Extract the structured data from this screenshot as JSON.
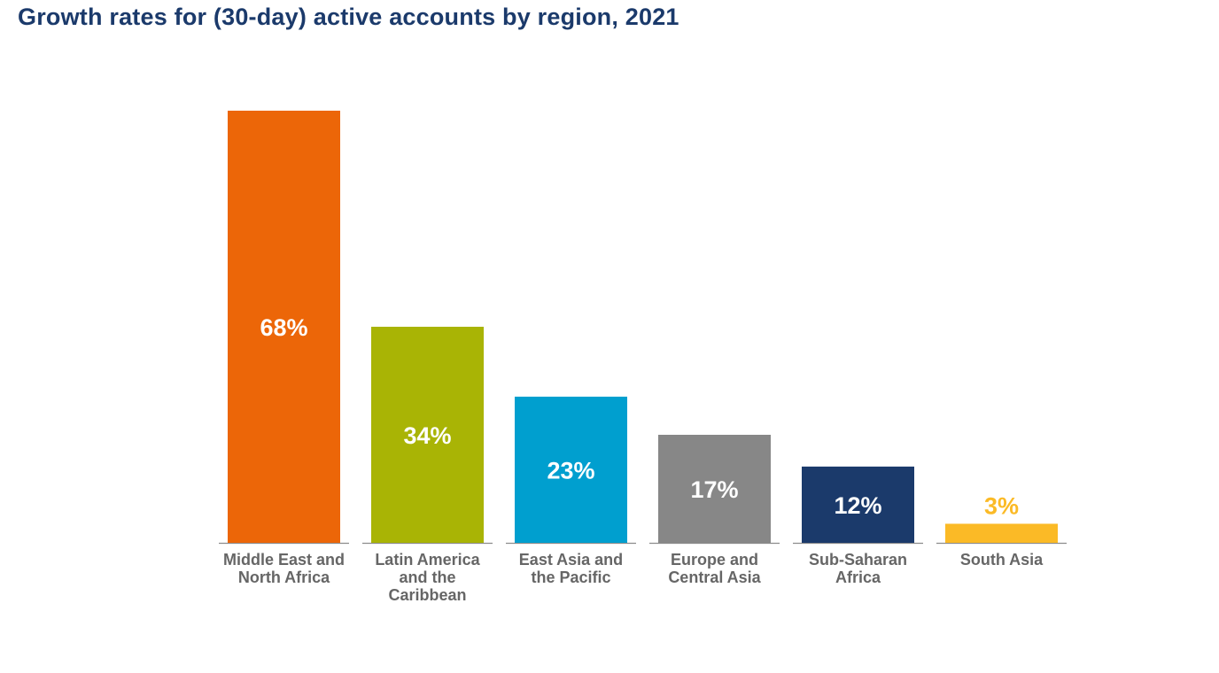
{
  "chart_data": {
    "type": "bar",
    "title": "Growth rates for (30-day) active accounts by region, 2021",
    "xlabel": "",
    "ylabel": "",
    "ylim": [
      0,
      68
    ],
    "grid": false,
    "legend": "none",
    "categories": [
      [
        "Middle East and",
        "North Africa"
      ],
      [
        "Latin America",
        "and the",
        "Caribbean"
      ],
      [
        "East Asia and",
        "the Pacific"
      ],
      [
        "Europe and",
        "Central Asia"
      ],
      [
        "Sub-Saharan",
        "Africa"
      ],
      [
        "South Asia"
      ]
    ],
    "values": [
      68,
      34,
      23,
      17,
      12,
      3
    ],
    "data_labels": [
      "68%",
      "34%",
      "23%",
      "17%",
      "12%",
      "3%"
    ],
    "colors": [
      "#ec6608",
      "#a9b405",
      "#009fcf",
      "#878787",
      "#1b3a6b",
      "#fbba26"
    ],
    "label_inside_color": "#ffffff"
  }
}
